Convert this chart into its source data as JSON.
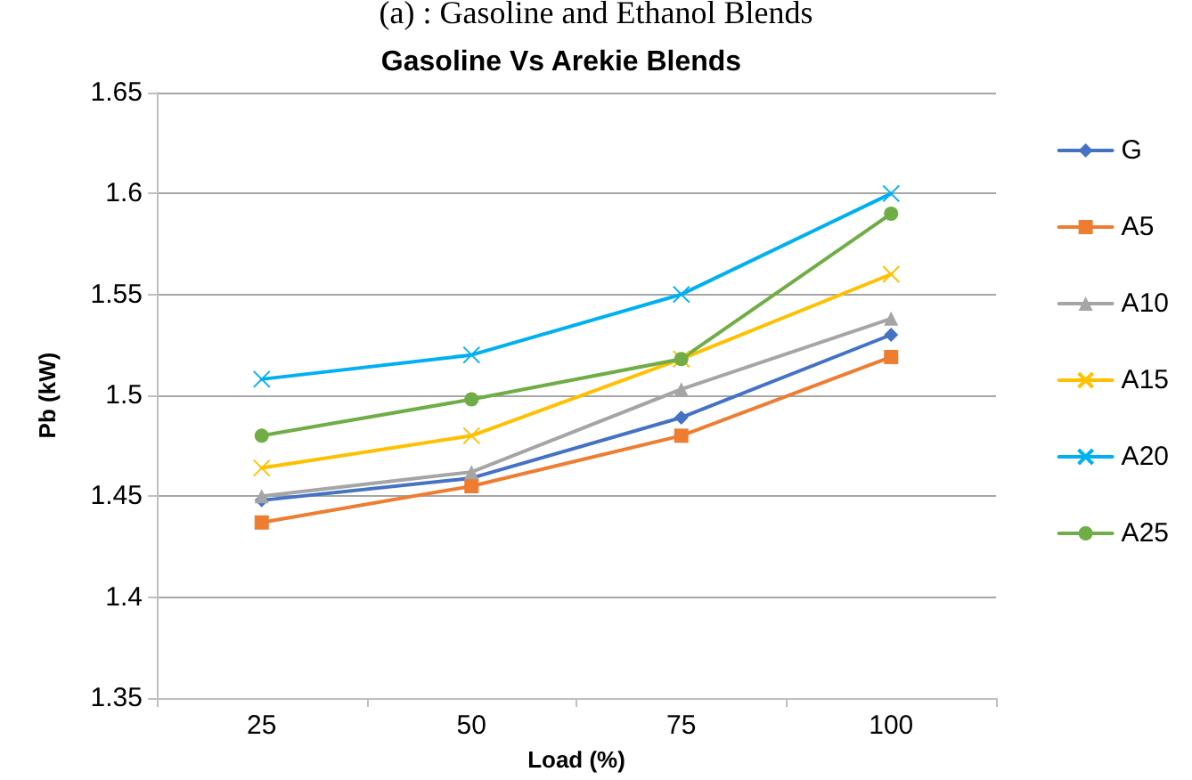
{
  "chart_data": {
    "type": "line",
    "title": "Gasoline Vs Arekie Blends",
    "xlabel": "Load (%)",
    "ylabel": "Pb (kW)",
    "annotations": [
      "(a) : Gasoline and Ethanol Blends"
    ],
    "categories": [
      "25",
      "50",
      "75",
      "100"
    ],
    "series": [
      {
        "name": "G",
        "color": "#4472c4",
        "marker": "diamond",
        "values": [
          1.448,
          1.459,
          1.489,
          1.53
        ]
      },
      {
        "name": "A5",
        "color": "#ed7d31",
        "marker": "square",
        "values": [
          1.437,
          1.455,
          1.48,
          1.519
        ]
      },
      {
        "name": "A10",
        "color": "#a5a5a5",
        "marker": "triangle",
        "values": [
          1.45,
          1.462,
          1.503,
          1.538
        ]
      },
      {
        "name": "A15",
        "color": "#ffc000",
        "marker": "cross",
        "values": [
          1.464,
          1.48,
          1.518,
          1.56
        ]
      },
      {
        "name": "A20",
        "color": "#00b0f0",
        "marker": "cross",
        "values": [
          1.508,
          1.52,
          1.55,
          1.6
        ]
      },
      {
        "name": "A25",
        "color": "#70ad47",
        "marker": "circle",
        "values": [
          1.48,
          1.498,
          1.518,
          1.59
        ]
      }
    ],
    "ylim": [
      1.35,
      1.65
    ],
    "yticks": [
      1.35,
      1.4,
      1.45,
      1.5,
      1.55,
      1.6,
      1.65
    ],
    "grid": "y",
    "legend": "right",
    "line_style": "solid"
  }
}
